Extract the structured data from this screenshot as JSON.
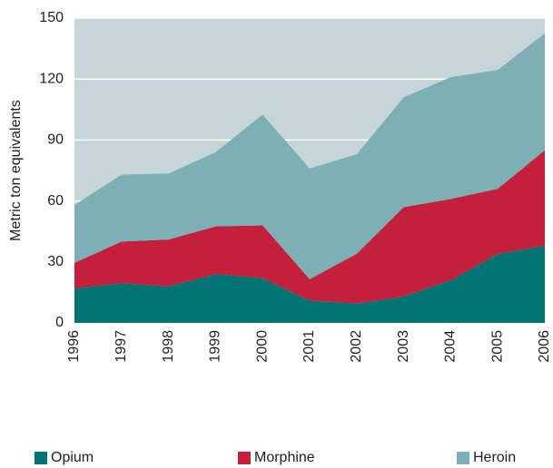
{
  "chart_data": {
    "type": "stacked_area",
    "y_label": "Metric ton equivalents",
    "categories": [
      "1996",
      "1997",
      "1998",
      "1999",
      "2000",
      "2001",
      "2002",
      "2003",
      "2004",
      "2005",
      "2006"
    ],
    "series": [
      {
        "name": "Opium",
        "color": "#007472",
        "values": [
          17,
          19.5,
          18,
          24,
          22,
          11,
          9.5,
          13,
          21,
          34,
          38
        ]
      },
      {
        "name": "Morphine",
        "color": "#c41f3b",
        "values": [
          12.5,
          20.5,
          23,
          23.5,
          26,
          10.5,
          24.5,
          44,
          40,
          32,
          47
        ]
      },
      {
        "name": "Heroin",
        "color": "#7db0b5",
        "values": [
          28.5,
          33,
          32.5,
          36.5,
          54.5,
          54.5,
          49,
          54,
          60,
          58.5,
          57.5
        ]
      }
    ],
    "ylim": [
      0,
      150
    ],
    "yticks": [
      0,
      30,
      60,
      90,
      120,
      150
    ],
    "grid": true,
    "background": "#c6d6d8",
    "legend": "bottom"
  }
}
